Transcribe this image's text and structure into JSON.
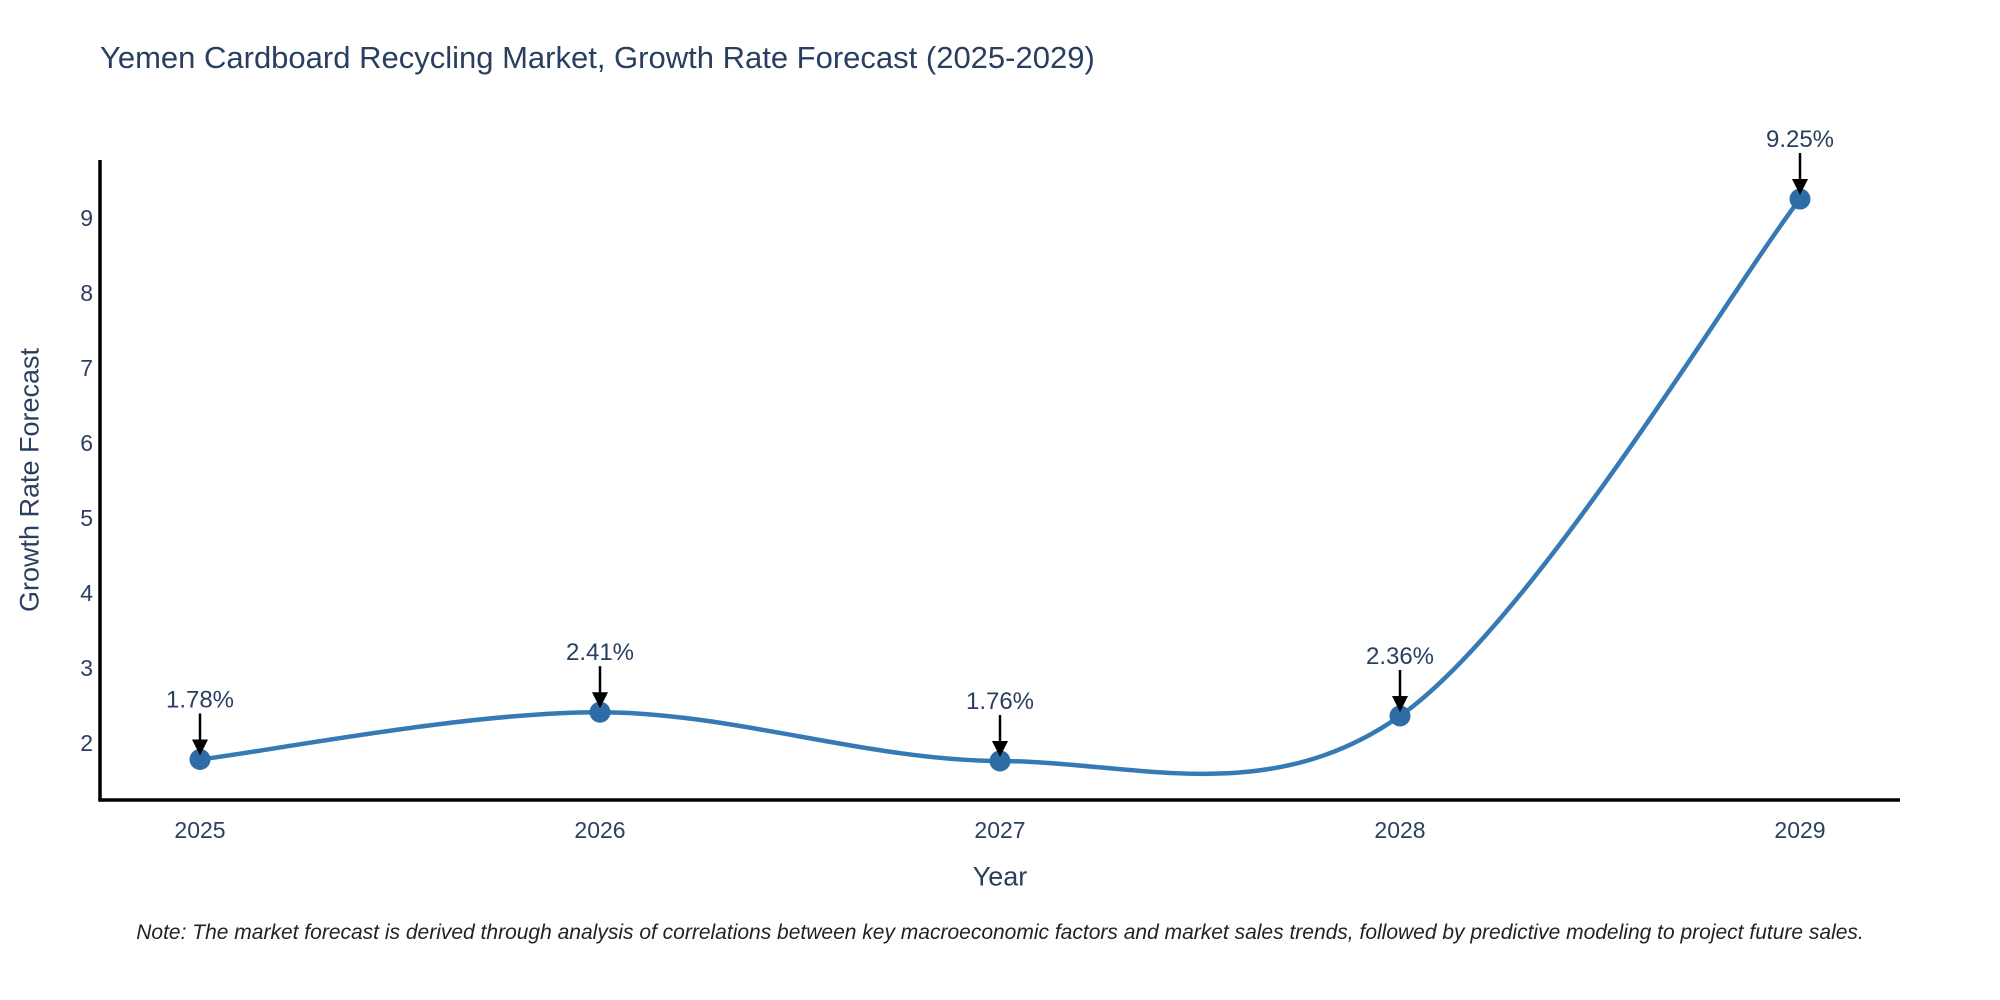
{
  "chart_data": {
    "type": "line",
    "line_shape": "spline",
    "title": "Yemen Cardboard Recycling Market, Growth Rate Forecast (2025-2029)",
    "xlabel": "Year",
    "ylabel": "Growth Rate Forecast",
    "categories": [
      "2025",
      "2026",
      "2027",
      "2028",
      "2029"
    ],
    "values": [
      1.78,
      2.41,
      1.76,
      2.36,
      9.25
    ],
    "point_labels": [
      "1.78%",
      "2.41%",
      "1.76%",
      "2.36%",
      "9.25%"
    ],
    "yticks": [
      2,
      3,
      4,
      5,
      6,
      7,
      8,
      9
    ],
    "ylim": [
      1.24,
      9.77
    ],
    "xlim": [
      -0.25,
      4.25
    ],
    "grid": false,
    "legend": false,
    "colors": {
      "line": "#3579b5",
      "marker": "#2e6ca5",
      "axis": "#000000",
      "text": "#2a3f5f",
      "annotation_arrow": "#000000",
      "background": "#ffffff"
    }
  },
  "footer": {
    "note": "Note: The market forecast is derived through analysis of correlations between key macroeconomic factors and market sales trends, followed by predictive modeling to project future sales."
  }
}
